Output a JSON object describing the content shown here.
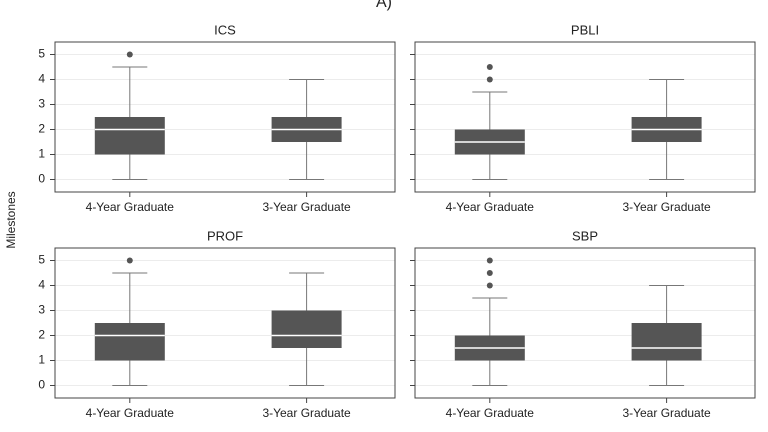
{
  "title": "A)",
  "y_label": "Milestones",
  "chart_data": [
    {
      "type": "box",
      "title": "ICS",
      "categories": [
        "4-Year Graduate",
        "3-Year Graduate"
      ],
      "boxes": [
        {
          "min": 0,
          "q1": 1,
          "median": 2,
          "q3": 2.5,
          "max": 4.5,
          "outliers": [
            5
          ]
        },
        {
          "min": 0,
          "q1": 1.5,
          "median": 2,
          "q3": 2.5,
          "max": 4,
          "outliers": []
        }
      ],
      "color": "#555555",
      "ylim": [
        -0.5,
        5.5
      ],
      "yticks": [
        0,
        1,
        2,
        3,
        4,
        5
      ],
      "ytick_labels": true,
      "grid": true
    },
    {
      "type": "box",
      "title": "PBLI",
      "categories": [
        "4-Year Graduate",
        "3-Year Graduate"
      ],
      "boxes": [
        {
          "min": 0,
          "q1": 1,
          "median": 1.5,
          "q3": 2,
          "max": 3.5,
          "outliers": [
            4,
            4.5
          ]
        },
        {
          "min": 0,
          "q1": 1.5,
          "median": 2,
          "q3": 2.5,
          "max": 4,
          "outliers": []
        }
      ],
      "color": "#555555",
      "ylim": [
        -0.5,
        5.5
      ],
      "yticks": [
        0,
        1,
        2,
        3,
        4,
        5
      ],
      "ytick_labels": false,
      "grid": true
    },
    {
      "type": "box",
      "title": "PROF",
      "categories": [
        "4-Year Graduate",
        "3-Year Graduate"
      ],
      "boxes": [
        {
          "min": 0,
          "q1": 1,
          "median": 2,
          "q3": 2.5,
          "max": 4.5,
          "outliers": [
            5
          ]
        },
        {
          "min": 0,
          "q1": 1.5,
          "median": 2,
          "q3": 3,
          "max": 4.5,
          "outliers": []
        }
      ],
      "color": "#555555",
      "ylim": [
        -0.5,
        5.5
      ],
      "yticks": [
        0,
        1,
        2,
        3,
        4,
        5
      ],
      "ytick_labels": true,
      "grid": true
    },
    {
      "type": "box",
      "title": "SBP",
      "categories": [
        "4-Year Graduate",
        "3-Year Graduate"
      ],
      "boxes": [
        {
          "min": 0,
          "q1": 1,
          "median": 1.5,
          "q3": 2,
          "max": 3.5,
          "outliers": [
            4,
            4.5,
            5
          ]
        },
        {
          "min": 0,
          "q1": 1,
          "median": 1.5,
          "q3": 2.5,
          "max": 4,
          "outliers": []
        }
      ],
      "color": "#555555",
      "ylim": [
        -0.5,
        5.5
      ],
      "yticks": [
        0,
        1,
        2,
        3,
        4,
        5
      ],
      "ytick_labels": false,
      "grid": true
    }
  ]
}
